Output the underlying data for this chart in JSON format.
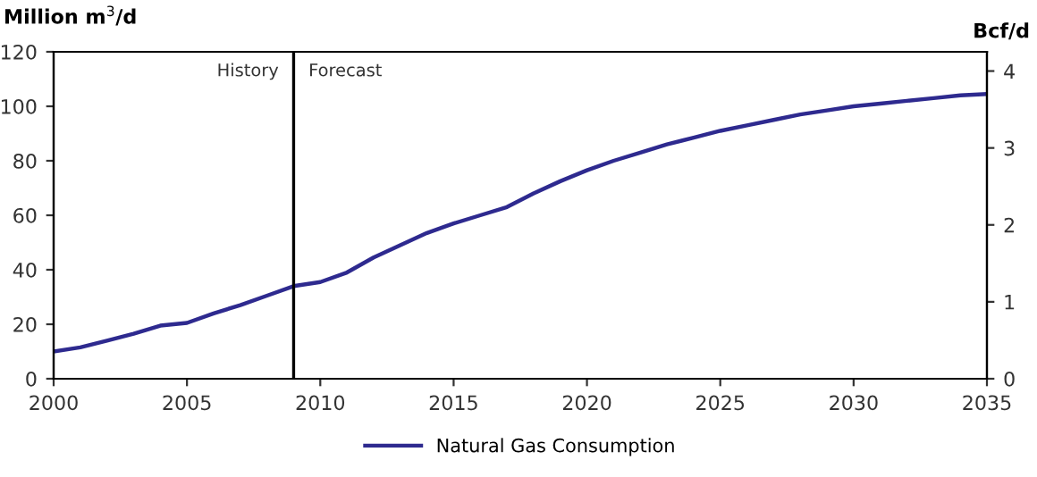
{
  "chart_data": {
    "type": "line",
    "ylabel": "Million m$^{3}$/d",
    "y2label": "Bcf/d",
    "x": [
      2000,
      2001,
      2002,
      2003,
      2004,
      2005,
      2006,
      2007,
      2008,
      2009,
      2010,
      2011,
      2012,
      2013,
      2014,
      2015,
      2016,
      2017,
      2018,
      2019,
      2020,
      2021,
      2022,
      2023,
      2024,
      2025,
      2026,
      2027,
      2028,
      2029,
      2030,
      2031,
      2032,
      2033,
      2034,
      2035
    ],
    "series": [
      {
        "name": "Natural Gas Consumption",
        "color": "#2e2a8f",
        "values": [
          10,
          11.5,
          14,
          16.5,
          19.5,
          20.5,
          24,
          27,
          30.5,
          34,
          35.5,
          39,
          44.5,
          49,
          53.5,
          57,
          60,
          63,
          68,
          72.5,
          76.5,
          80,
          83,
          86,
          88.5,
          91,
          93,
          95,
          97,
          98.5,
          100,
          101,
          102,
          103,
          104,
          104.5
        ]
      }
    ],
    "xlim": [
      2000,
      2035
    ],
    "xticks": [
      2000,
      2005,
      2010,
      2015,
      2020,
      2025,
      2030,
      2035
    ],
    "ylim": [
      0,
      120
    ],
    "yticks": [
      0,
      20,
      40,
      60,
      80,
      100,
      120
    ],
    "y2lim": [
      0,
      4.25
    ],
    "y2ticks": [
      0,
      1,
      2,
      3,
      4
    ],
    "ref_lines": [
      {
        "axis": "x",
        "value": 2009,
        "color": "#000000"
      }
    ],
    "annotations": [
      "History",
      "Forecast"
    ],
    "grid": false,
    "legend": "bottom",
    "marker": "none",
    "line_style": "solid"
  }
}
